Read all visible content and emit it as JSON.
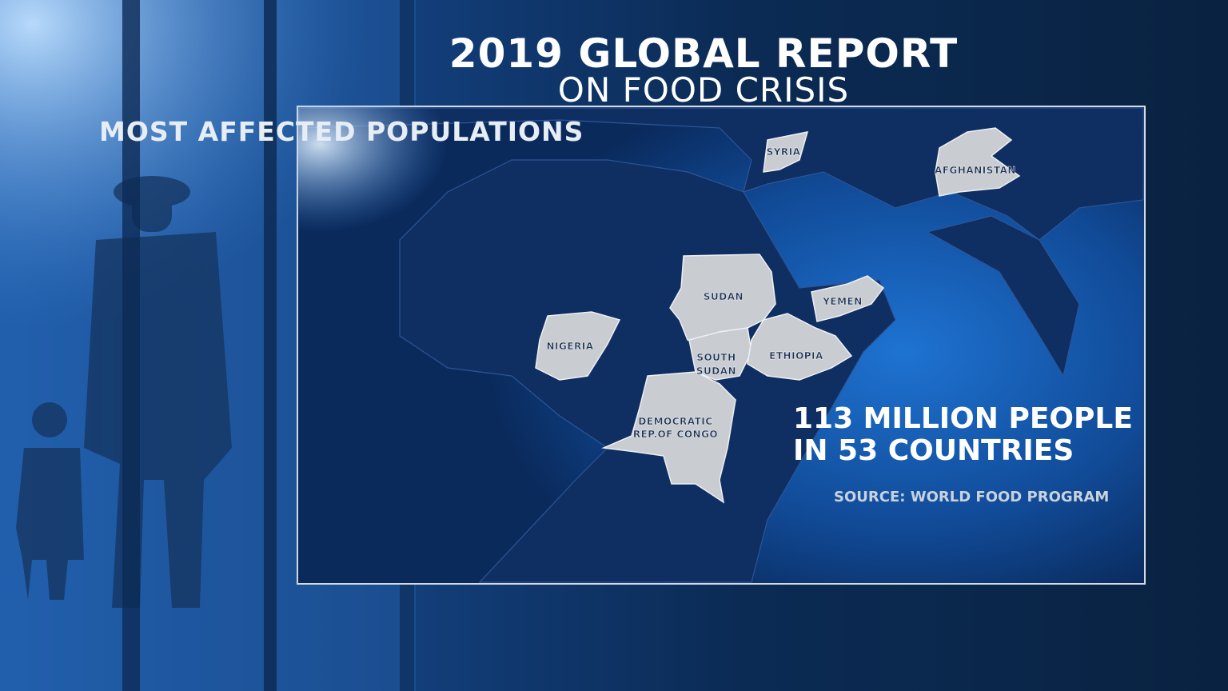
{
  "header": {
    "title": "2019 GLOBAL REPORT",
    "subtitle": "ON FOOD CRISIS"
  },
  "section_label": "MOST AFFECTED POPULATIONS",
  "map": {
    "countries": [
      {
        "label_lines": [
          "SYRIA"
        ]
      },
      {
        "label_lines": [
          "AFGHANISTAN"
        ]
      },
      {
        "label_lines": [
          "SUDAN"
        ]
      },
      {
        "label_lines": [
          "YEMEN"
        ]
      },
      {
        "label_lines": [
          "NIGERIA"
        ]
      },
      {
        "label_lines": [
          "SOUTH",
          "SUDAN"
        ]
      },
      {
        "label_lines": [
          "ETHIOPIA"
        ]
      },
      {
        "label_lines": [
          "DEMOCRATIC",
          "REP.OF CONGO"
        ]
      }
    ]
  },
  "stat": {
    "lines": [
      "113 MILLION PEOPLE",
      "IN 53 COUNTRIES"
    ]
  },
  "source": "SOURCE: WORLD FOOD PROGRAM"
}
